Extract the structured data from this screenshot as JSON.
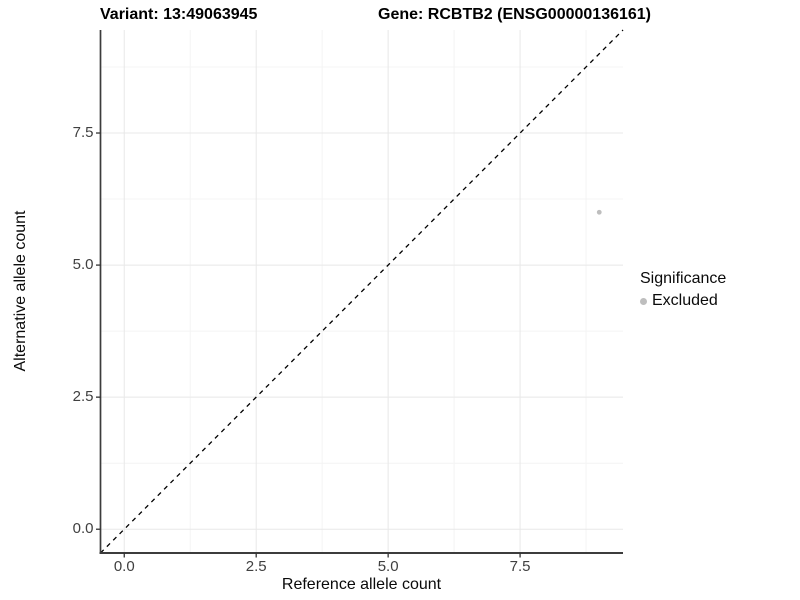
{
  "header": {
    "variant_title": "Variant: 13:49063945",
    "gene_title": "Gene: RCBTB2 (ENSG00000136161)"
  },
  "chart_data": {
    "type": "scatter",
    "titles": [
      "Variant: 13:49063945",
      "Gene: RCBTB2 (ENSG00000136161)"
    ],
    "xlabel": "Reference allele count",
    "ylabel": "Alternative allele count",
    "xlim": [
      -0.45,
      9.45
    ],
    "ylim": [
      -0.45,
      9.45
    ],
    "xticks": {
      "values": [
        0,
        2.5,
        5,
        7.5
      ],
      "labels": [
        "0.0",
        "2.5",
        "5.0",
        "7.5"
      ]
    },
    "yticks": {
      "values": [
        0,
        2.5,
        5,
        7.5
      ],
      "labels": [
        "0.0",
        "2.5",
        "5.0",
        "7.5"
      ]
    },
    "minor_ticks": [
      1.25,
      3.75,
      6.25,
      8.75
    ],
    "grid": "major+minor",
    "reference_line": {
      "type": "identity y=x",
      "style": "dashed",
      "color": "#000000"
    },
    "series": [
      {
        "name": "Excluded",
        "color": "#bebebe",
        "points": [
          {
            "x": 9,
            "y": 6
          }
        ]
      }
    ],
    "legend_position": "right"
  },
  "legend": {
    "title": "Significance",
    "items": [
      {
        "label": "Excluded",
        "color": "#bebebe"
      }
    ]
  },
  "colors": {
    "background": "#ffffff",
    "grid_major": "#e8e8e8",
    "grid_minor": "#f4f4f4",
    "axis_line": "#3c3c3c",
    "tick_mark": "#333333",
    "tick_text": "#404040",
    "point": "#bebebe"
  }
}
